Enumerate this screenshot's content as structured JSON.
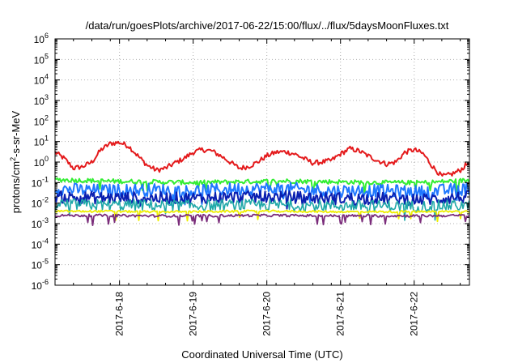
{
  "chart_data": {
    "type": "line",
    "title": "/data/run/goesPlots/archive/2017-06-22/15:00/flux/../flux/5daysMoonFluxes.txt",
    "xlabel": "Coordinated Universal Time (UTC)",
    "ylabel": "protons/cm²-s-sr-MeV",
    "ylabel_parts": {
      "pre": "protons/cm",
      "sup": "2",
      "post": "-s-sr-MeV"
    },
    "y_scale": "log",
    "ylim": [
      1e-06,
      1000000.0
    ],
    "y_ticks": [
      {
        "base": "10",
        "exp": "-6"
      },
      {
        "base": "10",
        "exp": "-5"
      },
      {
        "base": "10",
        "exp": "-4"
      },
      {
        "base": "10",
        "exp": "-3"
      },
      {
        "base": "10",
        "exp": "-2"
      },
      {
        "base": "10",
        "exp": "-1"
      },
      {
        "base": "10",
        "exp": "0"
      },
      {
        "base": "10",
        "exp": "1"
      },
      {
        "base": "10",
        "exp": "2"
      },
      {
        "base": "10",
        "exp": "3"
      },
      {
        "base": "10",
        "exp": "4"
      },
      {
        "base": "10",
        "exp": "5"
      },
      {
        "base": "10",
        "exp": "6"
      }
    ],
    "xlim": [
      "2017-06-17T03:00",
      "2017-06-22T18:00"
    ],
    "x_ticks": [
      "2017-6-18",
      "2017-6-19",
      "2017-6-20",
      "2017-6-21",
      "2017-6-22"
    ],
    "grid": true,
    "legend": "none",
    "series": [
      {
        "color": "#e41a1c",
        "x": [
          "2017-06-17T03:00",
          "2017-06-17T06:00",
          "2017-06-17T09:00",
          "2017-06-17T12:00",
          "2017-06-17T15:00",
          "2017-06-17T18:00",
          "2017-06-17T21:00",
          "2017-06-18T00:00",
          "2017-06-18T03:00",
          "2017-06-18T06:00",
          "2017-06-18T09:00",
          "2017-06-18T12:00",
          "2017-06-18T15:00",
          "2017-06-18T18:00",
          "2017-06-18T21:00",
          "2017-06-19T00:00",
          "2017-06-19T03:00",
          "2017-06-19T06:00",
          "2017-06-19T09:00",
          "2017-06-19T12:00",
          "2017-06-19T15:00",
          "2017-06-19T18:00",
          "2017-06-19T21:00",
          "2017-06-20T00:00",
          "2017-06-20T03:00",
          "2017-06-20T06:00",
          "2017-06-20T09:00",
          "2017-06-20T12:00",
          "2017-06-20T15:00",
          "2017-06-20T18:00",
          "2017-06-20T21:00",
          "2017-06-21T00:00",
          "2017-06-21T03:00",
          "2017-06-21T06:00",
          "2017-06-21T09:00",
          "2017-06-21T12:00",
          "2017-06-21T15:00",
          "2017-06-21T18:00",
          "2017-06-21T21:00",
          "2017-06-22T00:00",
          "2017-06-22T03:00",
          "2017-06-22T06:00",
          "2017-06-22T09:00",
          "2017-06-22T12:00",
          "2017-06-22T15:00",
          "2017-06-22T18:00"
        ],
        "y": [
          3.0,
          1.5,
          0.5,
          0.6,
          1.0,
          4.0,
          8.0,
          9.0,
          6.0,
          2.0,
          0.7,
          0.4,
          0.5,
          0.9,
          1.5,
          3.0,
          4.0,
          3.5,
          2.0,
          1.0,
          0.5,
          0.6,
          1.0,
          2.0,
          3.0,
          3.2,
          2.5,
          1.5,
          0.9,
          1.0,
          1.2,
          2.5,
          4.5,
          3.5,
          2.0,
          1.2,
          0.8,
          1.0,
          3.0,
          4.0,
          2.5,
          0.6,
          0.2,
          0.25,
          0.4,
          1.0
        ]
      },
      {
        "color": "#33ee33",
        "x": [
          "2017-06-17T03:00",
          "2017-06-17T18:00",
          "2017-06-18T09:00",
          "2017-06-19T00:00",
          "2017-06-19T15:00",
          "2017-06-20T06:00",
          "2017-06-20T21:00",
          "2017-06-21T12:00",
          "2017-06-22T03:00",
          "2017-06-22T18:00"
        ],
        "y": [
          0.14,
          0.12,
          0.11,
          0.1,
          0.11,
          0.12,
          0.11,
          0.1,
          0.1,
          0.13
        ]
      },
      {
        "color": "#1f78ff",
        "x": [
          "2017-06-17T03:00",
          "2017-06-17T18:00",
          "2017-06-18T09:00",
          "2017-06-19T00:00",
          "2017-06-19T15:00",
          "2017-06-20T06:00",
          "2017-06-20T21:00",
          "2017-06-21T12:00",
          "2017-06-22T03:00",
          "2017-06-22T18:00"
        ],
        "y": [
          0.05,
          0.04,
          0.045,
          0.04,
          0.05,
          0.05,
          0.04,
          0.04,
          0.035,
          0.05
        ]
      },
      {
        "color": "#0a1fb0",
        "x": [
          "2017-06-17T03:00",
          "2017-06-17T18:00",
          "2017-06-18T09:00",
          "2017-06-19T00:00",
          "2017-06-19T15:00",
          "2017-06-20T06:00",
          "2017-06-20T21:00",
          "2017-06-21T12:00",
          "2017-06-22T03:00",
          "2017-06-22T18:00"
        ],
        "y": [
          0.02,
          0.018,
          0.018,
          0.017,
          0.02,
          0.02,
          0.017,
          0.017,
          0.015,
          0.02
        ]
      },
      {
        "color": "#1fa8a8",
        "x": [
          "2017-06-17T03:00",
          "2017-06-17T18:00",
          "2017-06-18T09:00",
          "2017-06-19T00:00",
          "2017-06-19T15:00",
          "2017-06-20T06:00",
          "2017-06-20T21:00",
          "2017-06-21T12:00",
          "2017-06-22T03:00",
          "2017-06-22T18:00"
        ],
        "y": [
          0.009,
          0.008,
          0.008,
          0.0075,
          0.008,
          0.008,
          0.0075,
          0.0075,
          0.007,
          0.008
        ]
      },
      {
        "color": "#eeee00",
        "x": [
          "2017-06-17T03:00",
          "2017-06-17T18:00",
          "2017-06-18T09:00",
          "2017-06-19T00:00",
          "2017-06-19T15:00",
          "2017-06-20T06:00",
          "2017-06-20T21:00",
          "2017-06-21T12:00",
          "2017-06-22T03:00",
          "2017-06-22T18:00"
        ],
        "y": [
          0.004,
          0.004,
          0.0038,
          0.0038,
          0.004,
          0.004,
          0.0038,
          0.0038,
          0.0038,
          0.004
        ]
      },
      {
        "color": "#7b2d7b",
        "x": [
          "2017-06-17T03:00",
          "2017-06-17T18:00",
          "2017-06-18T09:00",
          "2017-06-19T00:00",
          "2017-06-19T15:00",
          "2017-06-20T06:00",
          "2017-06-20T21:00",
          "2017-06-21T12:00",
          "2017-06-22T03:00",
          "2017-06-22T18:00"
        ],
        "y": [
          0.0025,
          0.0025,
          0.0024,
          0.0024,
          0.0025,
          0.0025,
          0.0024,
          0.0024,
          0.0024,
          0.0025
        ]
      }
    ]
  }
}
